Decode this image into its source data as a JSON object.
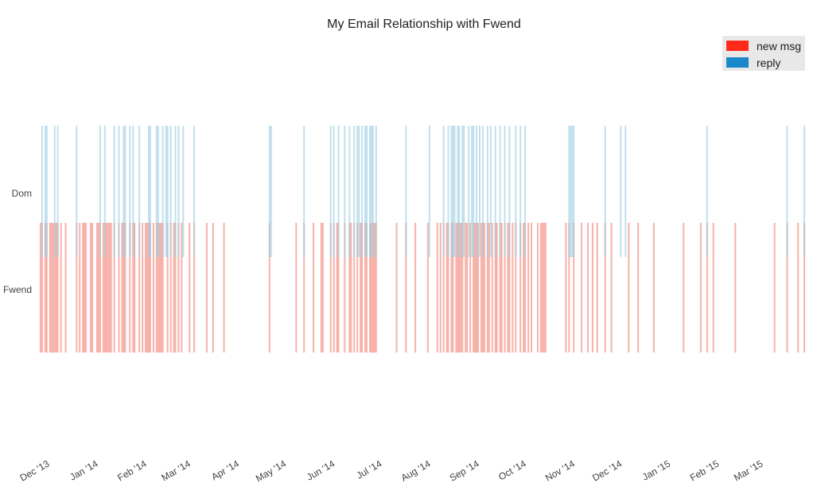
{
  "chart_data": {
    "type": "timeline",
    "title": "My Email Relationship with Fwend",
    "rows": [
      "Dom",
      "Fwend"
    ],
    "x_ticks": [
      "Dec '13",
      "Jan '14",
      "Feb '14",
      "Mar '14",
      "Apr '14",
      "May '14",
      "Jun '14",
      "Jul '14",
      "Aug '14",
      "Sep '14",
      "Oct '14",
      "Nov '14",
      "Dec '14",
      "Jan '15",
      "Feb '15",
      "Mar '15"
    ],
    "x_range": [
      "2013-11-27",
      "2015-04-02"
    ],
    "legend": {
      "placement": "top-right",
      "entries": [
        {
          "label": "new msg",
          "color": "#ff2a1a"
        },
        {
          "label": "reply",
          "color": "#1a88c8"
        }
      ]
    },
    "series": [
      {
        "name": "new msg",
        "row": "Fwend",
        "color": "#f26655",
        "dates": [
          "2013-11-29",
          "2013-11-30",
          "2013-12-02",
          "2013-12-03",
          "2013-12-05",
          "2013-12-06",
          "2013-12-07",
          "2013-12-08",
          "2013-12-09",
          "2013-12-10",
          "2013-12-12",
          "2013-12-15",
          "2013-12-22",
          "2013-12-24",
          "2013-12-26",
          "2013-12-27",
          "2013-12-28",
          "2013-12-31",
          "2014-01-01",
          "2014-01-04",
          "2014-01-05",
          "2014-01-06",
          "2014-01-08",
          "2014-01-09",
          "2014-01-10",
          "2014-01-11",
          "2014-01-12",
          "2014-01-13",
          "2014-01-15",
          "2014-01-18",
          "2014-01-20",
          "2014-01-21",
          "2014-01-22",
          "2014-01-25",
          "2014-01-27",
          "2014-01-28",
          "2014-01-31",
          "2014-02-02",
          "2014-02-04",
          "2014-02-05",
          "2014-02-06",
          "2014-02-07",
          "2014-02-09",
          "2014-02-11",
          "2014-02-12",
          "2014-02-13",
          "2014-02-14",
          "2014-02-15",
          "2014-02-18",
          "2014-02-20",
          "2014-02-22",
          "2014-02-23",
          "2014-02-25",
          "2014-02-27",
          "2014-03-04",
          "2014-03-07",
          "2014-03-15",
          "2014-03-19",
          "2014-03-26",
          "2014-04-24",
          "2014-05-11",
          "2014-05-16",
          "2014-05-22",
          "2014-05-27",
          "2014-05-28",
          "2014-06-02",
          "2014-06-04",
          "2014-06-06",
          "2014-06-07",
          "2014-06-11",
          "2014-06-14",
          "2014-06-15",
          "2014-06-17",
          "2014-06-19",
          "2014-06-21",
          "2014-06-22",
          "2014-06-24",
          "2014-06-25",
          "2014-06-27",
          "2014-06-28",
          "2014-06-29",
          "2014-06-30",
          "2014-07-01",
          "2014-07-14",
          "2014-07-20",
          "2014-07-26",
          "2014-08-03",
          "2014-08-09",
          "2014-08-11",
          "2014-08-13",
          "2014-08-15",
          "2014-08-16",
          "2014-08-18",
          "2014-08-19",
          "2014-08-21",
          "2014-08-22",
          "2014-08-23",
          "2014-08-24",
          "2014-08-25",
          "2014-08-27",
          "2014-08-28",
          "2014-08-30",
          "2014-09-01",
          "2014-09-02",
          "2014-09-03",
          "2014-09-04",
          "2014-09-06",
          "2014-09-07",
          "2014-09-08",
          "2014-09-10",
          "2014-09-11",
          "2014-09-13",
          "2014-09-15",
          "2014-09-16",
          "2014-09-18",
          "2014-09-19",
          "2014-09-21",
          "2014-09-23",
          "2014-09-24",
          "2014-09-26",
          "2014-09-28",
          "2014-10-01",
          "2014-10-03",
          "2014-10-04",
          "2014-10-06",
          "2014-10-08",
          "2014-10-12",
          "2014-10-14",
          "2014-10-15",
          "2014-10-16",
          "2014-10-17",
          "2014-10-30",
          "2014-11-01",
          "2014-11-04",
          "2014-11-09",
          "2014-11-13",
          "2014-11-16",
          "2014-11-19",
          "2014-11-24",
          "2014-11-28",
          "2014-12-09",
          "2014-12-15",
          "2014-12-25",
          "2015-01-13",
          "2015-01-24",
          "2015-01-28",
          "2015-02-01",
          "2015-02-15",
          "2015-03-12",
          "2015-03-20",
          "2015-03-27",
          "2015-03-31"
        ]
      },
      {
        "name": "reply",
        "row": "Dom",
        "color": "#9fcfe2",
        "dates": [
          "2013-11-30",
          "2013-12-02",
          "2013-12-03",
          "2013-12-08",
          "2013-12-10",
          "2013-12-22",
          "2014-01-06",
          "2014-01-09",
          "2014-01-15",
          "2014-01-18",
          "2014-01-21",
          "2014-01-22",
          "2014-01-25",
          "2014-01-27",
          "2014-01-31",
          "2014-02-06",
          "2014-02-07",
          "2014-02-11",
          "2014-02-12",
          "2014-02-15",
          "2014-02-17",
          "2014-02-18",
          "2014-02-20",
          "2014-02-23",
          "2014-02-25",
          "2014-02-28",
          "2014-03-07",
          "2014-04-24",
          "2014-04-25",
          "2014-05-16",
          "2014-06-02",
          "2014-06-04",
          "2014-06-07",
          "2014-06-11",
          "2014-06-14",
          "2014-06-17",
          "2014-06-19",
          "2014-06-20",
          "2014-06-22",
          "2014-06-24",
          "2014-06-25",
          "2014-06-27",
          "2014-06-28",
          "2014-06-29",
          "2014-07-01",
          "2014-07-20",
          "2014-08-04",
          "2014-08-13",
          "2014-08-16",
          "2014-08-18",
          "2014-08-19",
          "2014-08-20",
          "2014-08-22",
          "2014-08-23",
          "2014-08-25",
          "2014-08-26",
          "2014-08-29",
          "2014-08-31",
          "2014-09-01",
          "2014-09-03",
          "2014-09-05",
          "2014-09-07",
          "2014-09-10",
          "2014-09-12",
          "2014-09-15",
          "2014-09-18",
          "2014-09-21",
          "2014-09-24",
          "2014-09-28",
          "2014-10-01",
          "2014-10-04",
          "2014-11-01",
          "2014-11-02",
          "2014-11-03",
          "2014-11-04",
          "2014-11-24",
          "2014-12-04",
          "2014-12-07",
          "2015-01-28",
          "2015-03-20",
          "2015-03-31"
        ]
      }
    ]
  }
}
